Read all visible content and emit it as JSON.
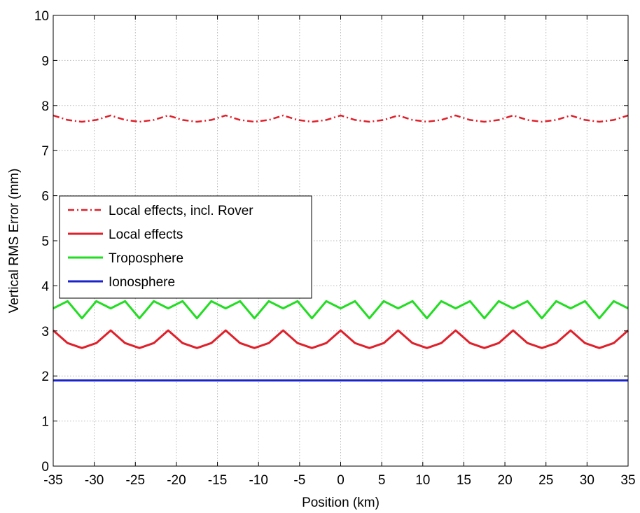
{
  "chart_data": {
    "type": "line",
    "xlabel": "Position (km)",
    "ylabel": "Vertical RMS Error (mm)",
    "xlim": [
      -35,
      35
    ],
    "ylim": [
      0,
      10
    ],
    "xticks": [
      -35,
      -30,
      -25,
      -20,
      -15,
      -10,
      -5,
      0,
      5,
      10,
      15,
      20,
      25,
      30,
      35
    ],
    "yticks": [
      0,
      1,
      2,
      3,
      4,
      5,
      6,
      7,
      8,
      9,
      10
    ],
    "xtick_labels": [
      "-35",
      "-30",
      "-25",
      "-20",
      "-15",
      "-10",
      "-5",
      "0",
      "5",
      "10",
      "15",
      "20",
      "25",
      "30",
      "35"
    ],
    "ytick_labels": [
      "0",
      "1",
      "2",
      "3",
      "4",
      "5",
      "6",
      "7",
      "8",
      "9",
      "10"
    ],
    "grid": true,
    "legend_position": "middle-left",
    "series": [
      {
        "name": "Local effects, incl. Rover",
        "color": "#e0202a",
        "style": "dash-dot",
        "x": [
          -35,
          -33.25,
          -31.5,
          -29.75,
          -28,
          -26.25,
          -24.5,
          -22.75,
          -21,
          -19.25,
          -17.5,
          -15.75,
          -14,
          -12.25,
          -10.5,
          -8.75,
          -7,
          -5.25,
          -3.5,
          -1.75,
          0,
          1.75,
          3.5,
          5.25,
          7,
          8.75,
          10.5,
          12.25,
          14,
          15.75,
          17.5,
          19.25,
          21,
          22.75,
          24.5,
          26.25,
          28,
          29.75,
          31.5,
          33.25,
          35
        ],
        "y": [
          7.78,
          7.68,
          7.64,
          7.68,
          7.78,
          7.68,
          7.64,
          7.68,
          7.78,
          7.68,
          7.64,
          7.68,
          7.78,
          7.68,
          7.64,
          7.68,
          7.78,
          7.68,
          7.64,
          7.68,
          7.78,
          7.68,
          7.64,
          7.68,
          7.78,
          7.68,
          7.64,
          7.68,
          7.78,
          7.68,
          7.64,
          7.68,
          7.78,
          7.68,
          7.64,
          7.68,
          7.78,
          7.68,
          7.64,
          7.68,
          7.78
        ]
      },
      {
        "name": "Local effects",
        "color": "#e0202a",
        "style": "solid",
        "x": [
          -35,
          -33.25,
          -31.5,
          -29.75,
          -28,
          -26.25,
          -24.5,
          -22.75,
          -21,
          -19.25,
          -17.5,
          -15.75,
          -14,
          -12.25,
          -10.5,
          -8.75,
          -7,
          -5.25,
          -3.5,
          -1.75,
          0,
          1.75,
          3.5,
          5.25,
          7,
          8.75,
          10.5,
          12.25,
          14,
          15.75,
          17.5,
          19.25,
          21,
          22.75,
          24.5,
          26.25,
          28,
          29.75,
          31.5,
          33.25,
          35
        ],
        "y": [
          3.01,
          2.73,
          2.62,
          2.73,
          3.01,
          2.73,
          2.62,
          2.73,
          3.01,
          2.73,
          2.62,
          2.73,
          3.01,
          2.73,
          2.62,
          2.73,
          3.01,
          2.73,
          2.62,
          2.73,
          3.01,
          2.73,
          2.62,
          2.73,
          3.01,
          2.73,
          2.62,
          2.73,
          3.01,
          2.73,
          2.62,
          2.73,
          3.01,
          2.73,
          2.62,
          2.73,
          3.01,
          2.73,
          2.62,
          2.73,
          3.01
        ]
      },
      {
        "name": "Troposphere",
        "color": "#22dd22",
        "style": "solid",
        "x": [
          -35,
          -33.25,
          -31.5,
          -29.75,
          -28,
          -26.25,
          -24.5,
          -22.75,
          -21,
          -19.25,
          -17.5,
          -15.75,
          -14,
          -12.25,
          -10.5,
          -8.75,
          -7,
          -5.25,
          -3.5,
          -1.75,
          0,
          1.75,
          3.5,
          5.25,
          7,
          8.75,
          10.5,
          12.25,
          14,
          15.75,
          17.5,
          19.25,
          21,
          22.75,
          24.5,
          26.25,
          28,
          29.75,
          31.5,
          33.25,
          35
        ],
        "y": [
          3.5,
          3.66,
          3.28,
          3.66,
          3.5,
          3.66,
          3.28,
          3.66,
          3.5,
          3.66,
          3.28,
          3.66,
          3.5,
          3.66,
          3.28,
          3.66,
          3.5,
          3.66,
          3.28,
          3.66,
          3.5,
          3.66,
          3.28,
          3.66,
          3.5,
          3.66,
          3.28,
          3.66,
          3.5,
          3.66,
          3.28,
          3.66,
          3.5,
          3.66,
          3.28,
          3.66,
          3.5,
          3.66,
          3.28,
          3.66,
          3.5
        ]
      },
      {
        "name": "Ionosphere",
        "color": "#1a22cc",
        "style": "solid",
        "x": [
          -35,
          35
        ],
        "y": [
          1.9,
          1.9
        ]
      }
    ]
  }
}
